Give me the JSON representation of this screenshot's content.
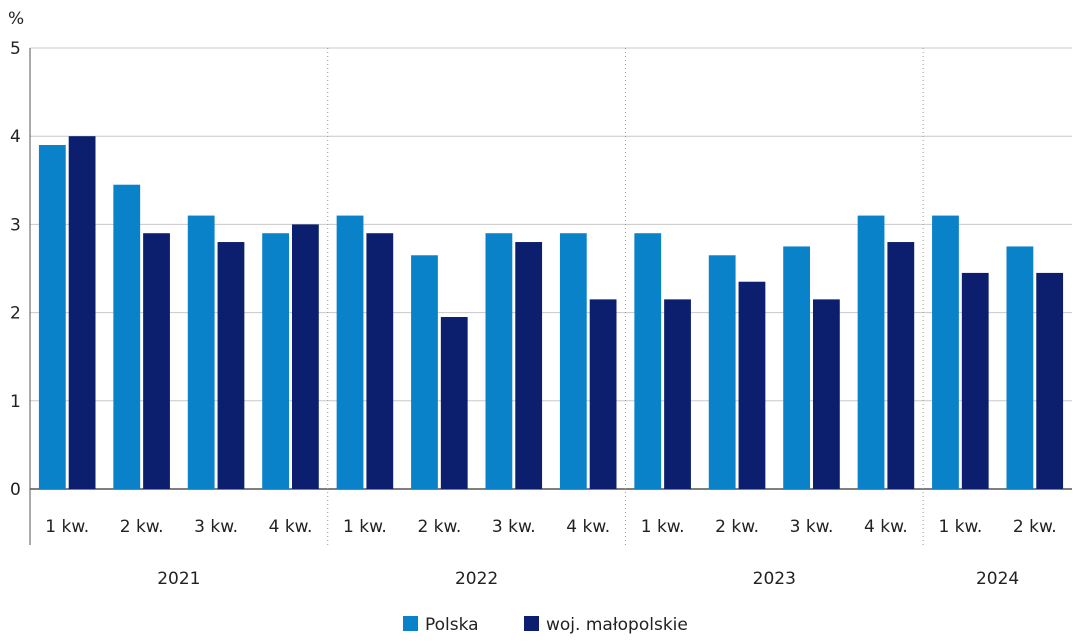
{
  "chart_data": {
    "type": "bar",
    "y_unit": "%",
    "ylim": [
      0,
      5
    ],
    "yticks": [
      0,
      1,
      2,
      3,
      4,
      5
    ],
    "grid": true,
    "legend_position": "bottom-center",
    "groups": [
      {
        "year": "2021",
        "categories": [
          "1 kw.",
          "2 kw.",
          "3 kw.",
          "4 kw."
        ]
      },
      {
        "year": "2022",
        "categories": [
          "1 kw.",
          "2 kw.",
          "3 kw.",
          "4 kw."
        ]
      },
      {
        "year": "2023",
        "categories": [
          "1 kw.",
          "2 kw.",
          "3 kw.",
          "4 kw."
        ]
      },
      {
        "year": "2024",
        "categories": [
          "1 kw.",
          "2 kw."
        ]
      }
    ],
    "series": [
      {
        "name": "Polska",
        "color": "#0a82ca",
        "values": [
          3.9,
          3.45,
          3.1,
          2.9,
          3.1,
          2.65,
          2.9,
          2.9,
          2.9,
          2.65,
          2.75,
          3.1,
          3.1,
          2.75
        ]
      },
      {
        "name": "woj. małopolskie",
        "color": "#0c1f6e",
        "values": [
          4.0,
          2.9,
          2.8,
          3.0,
          2.9,
          1.95,
          2.8,
          2.15,
          2.15,
          2.35,
          2.15,
          2.8,
          2.45,
          2.45
        ]
      }
    ]
  }
}
